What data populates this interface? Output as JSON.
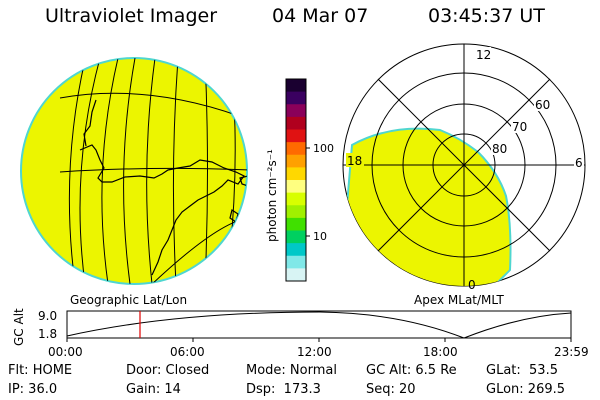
{
  "header": {
    "instrument": "Ultraviolet Imager",
    "date": "04 Mar 07",
    "time": "03:45:37 UT"
  },
  "colorbar": {
    "unit_label": "photon cm⁻²s⁻¹",
    "ticks": [
      "100",
      "10"
    ],
    "colors_top_to_bottom": [
      "#1a0030",
      "#3a0060",
      "#8a005a",
      "#b0001e",
      "#e01212",
      "#ff6a00",
      "#ffa000",
      "#ffd800",
      "#ffff80",
      "#d8ff00",
      "#a0f000",
      "#40e000",
      "#00d060",
      "#00c8c8",
      "#80e8e8",
      "#d8f4f4"
    ]
  },
  "geo_panel": {
    "label": "Geographic Lat/Lon",
    "fill_color": "#ecf500",
    "edge_color": "#4fd6d0"
  },
  "polar_panel": {
    "label": "Apex MLat/MLT",
    "mlt_labels": {
      "top": "12",
      "left": "18",
      "right": "6",
      "bottom": "0"
    },
    "lat_labels": [
      "60",
      "70",
      "80"
    ],
    "fill_color": "#ecf500"
  },
  "altitude_plot": {
    "y_axis_label": "GC Alt",
    "y_ticks": [
      "9.0",
      "1.8"
    ],
    "x_ticks": [
      "00:00",
      "06:00",
      "12:00",
      "18:00",
      "23:59"
    ],
    "current_time_marker_color": "#e00000"
  },
  "info": {
    "row1": {
      "flt": "Flt: HOME",
      "door": "Door: Closed",
      "mode": "Mode: Normal",
      "gc_alt": "GC Alt: 6.5 Re",
      "glat": "GLat:  53.5"
    },
    "row2": {
      "ip": "IP: 36.0",
      "gain": "Gain: 14",
      "dsp": "Dsp:  173.3",
      "seq": "Seq: 20",
      "glon": "GLon: 269.5"
    }
  }
}
